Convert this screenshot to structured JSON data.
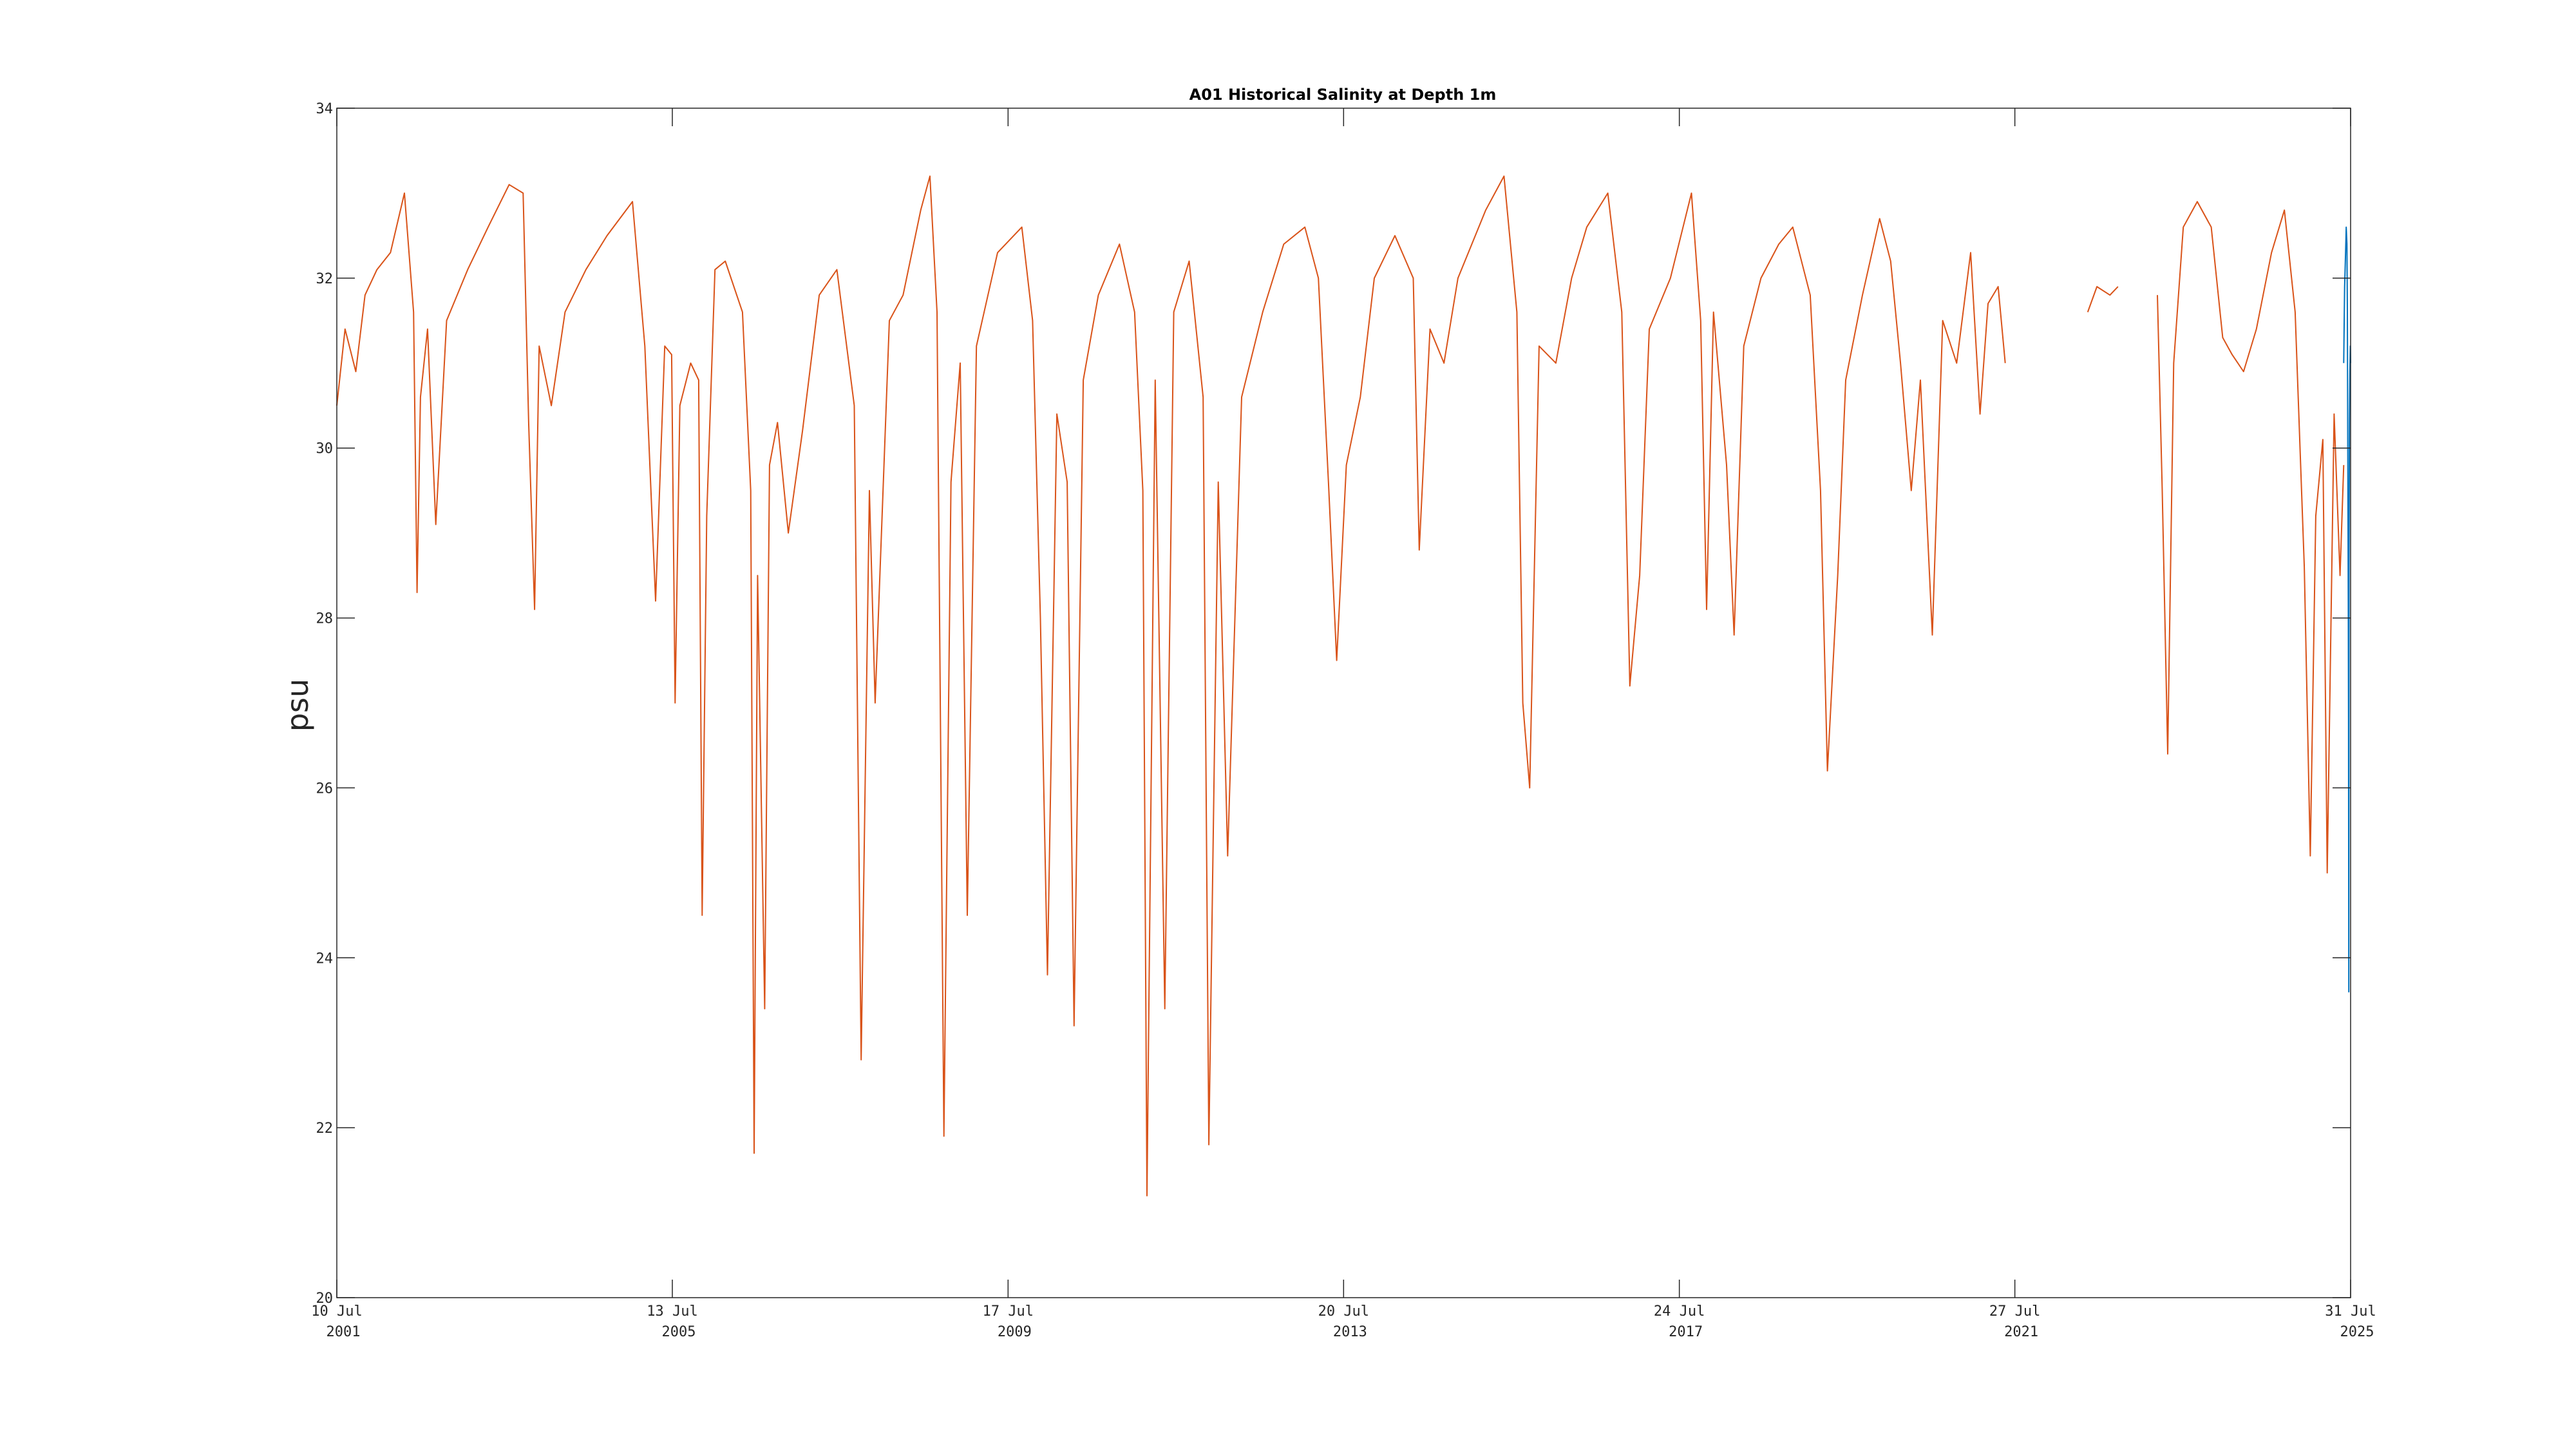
{
  "chart_data": {
    "type": "line",
    "title": "A01 Historical Salinity at Depth 1m",
    "xlabel": "",
    "ylabel": "psu",
    "xlim": [
      "2001-07-10",
      "2025-07-31"
    ],
    "ylim": [
      20,
      34
    ],
    "yticks": [
      20,
      22,
      24,
      26,
      28,
      30,
      32,
      34
    ],
    "xticks": [
      {
        "date": "2001-07-10",
        "line1": "10 Jul",
        "line2": "2001"
      },
      {
        "date": "2005-07-13",
        "line1": "13 Jul",
        "line2": "2005"
      },
      {
        "date": "2009-07-17",
        "line1": "17 Jul",
        "line2": "2009"
      },
      {
        "date": "2013-07-20",
        "line1": "20 Jul",
        "line2": "2013"
      },
      {
        "date": "2017-07-24",
        "line1": "24 Jul",
        "line2": "2017"
      },
      {
        "date": "2021-07-27",
        "line1": "27 Jul",
        "line2": "2021"
      },
      {
        "date": "2025-07-31",
        "line1": "31 Jul",
        "line2": "2025"
      }
    ],
    "grid": false,
    "series": [
      {
        "color": "#D95319",
        "points": [
          [
            "2001-07-10",
            30.5
          ],
          [
            "2001-08-15",
            31.4
          ],
          [
            "2001-10-01",
            30.9
          ],
          [
            "2001-11-10",
            31.8
          ],
          [
            "2002-01-01",
            32.1
          ],
          [
            "2002-03-01",
            32.3
          ],
          [
            "2002-05-01",
            33.0
          ],
          [
            "2002-06-10",
            31.6
          ],
          [
            "2002-06-25",
            28.3
          ],
          [
            "2002-07-10",
            30.6
          ],
          [
            "2002-08-10",
            31.4
          ],
          [
            "2002-09-15",
            29.1
          ],
          [
            "2002-11-01",
            31.5
          ],
          [
            "2003-02-01",
            32.1
          ],
          [
            "2003-05-01",
            32.6
          ],
          [
            "2003-08-01",
            33.1
          ],
          [
            "2003-10-01",
            33.0
          ],
          [
            "2003-10-25",
            30.3
          ],
          [
            "2003-11-20",
            28.1
          ],
          [
            "2003-12-10",
            31.2
          ],
          [
            "2004-02-01",
            30.5
          ],
          [
            "2004-04-01",
            31.6
          ],
          [
            "2004-07-01",
            32.1
          ],
          [
            "2004-10-01",
            32.5
          ],
          [
            "2005-01-20",
            32.9
          ],
          [
            "2005-03-15",
            31.2
          ],
          [
            "2005-05-01",
            28.2
          ],
          [
            "2005-06-10",
            31.2
          ],
          [
            "2005-07-10",
            31.1
          ],
          [
            "2005-07-25",
            27.0
          ],
          [
            "2005-08-15",
            30.5
          ],
          [
            "2005-10-01",
            31.0
          ],
          [
            "2005-11-05",
            30.8
          ],
          [
            "2005-11-20",
            24.5
          ],
          [
            "2005-12-10",
            29.2
          ],
          [
            "2006-01-15",
            32.1
          ],
          [
            "2006-03-01",
            32.2
          ],
          [
            "2006-05-15",
            31.6
          ],
          [
            "2006-06-20",
            29.5
          ],
          [
            "2006-07-05",
            21.7
          ],
          [
            "2006-07-20",
            28.5
          ],
          [
            "2006-08-20",
            23.4
          ],
          [
            "2006-09-10",
            29.8
          ],
          [
            "2006-10-15",
            30.3
          ],
          [
            "2006-12-01",
            29.0
          ],
          [
            "2007-02-01",
            30.2
          ],
          [
            "2007-04-15",
            31.8
          ],
          [
            "2007-07-01",
            32.1
          ],
          [
            "2007-09-15",
            30.5
          ],
          [
            "2007-10-15",
            22.8
          ],
          [
            "2007-11-20",
            29.5
          ],
          [
            "2007-12-15",
            27.0
          ],
          [
            "2008-02-15",
            31.5
          ],
          [
            "2008-04-15",
            31.8
          ],
          [
            "2008-07-01",
            32.8
          ],
          [
            "2008-08-10",
            33.2
          ],
          [
            "2008-09-10",
            31.6
          ],
          [
            "2008-10-10",
            21.9
          ],
          [
            "2008-11-10",
            29.6
          ],
          [
            "2008-12-20",
            31.0
          ],
          [
            "2009-01-20",
            24.5
          ],
          [
            "2009-03-01",
            31.2
          ],
          [
            "2009-06-01",
            32.3
          ],
          [
            "2009-09-15",
            32.6
          ],
          [
            "2009-11-01",
            31.5
          ],
          [
            "2009-12-05",
            28.0
          ],
          [
            "2010-01-05",
            23.8
          ],
          [
            "2010-02-15",
            30.4
          ],
          [
            "2010-04-01",
            29.6
          ],
          [
            "2010-05-01",
            23.2
          ],
          [
            "2010-06-10",
            30.8
          ],
          [
            "2010-08-15",
            31.8
          ],
          [
            "2010-11-15",
            32.4
          ],
          [
            "2011-01-20",
            31.6
          ],
          [
            "2011-02-25",
            29.5
          ],
          [
            "2011-03-15",
            21.2
          ],
          [
            "2011-04-20",
            30.8
          ],
          [
            "2011-06-01",
            23.4
          ],
          [
            "2011-07-10",
            31.6
          ],
          [
            "2011-09-15",
            32.2
          ],
          [
            "2011-11-15",
            30.6
          ],
          [
            "2011-12-10",
            21.8
          ],
          [
            "2012-01-20",
            29.6
          ],
          [
            "2012-03-01",
            25.2
          ],
          [
            "2012-05-01",
            30.6
          ],
          [
            "2012-08-01",
            31.6
          ],
          [
            "2012-11-01",
            32.4
          ],
          [
            "2013-02-01",
            32.6
          ],
          [
            "2013-04-01",
            32.0
          ],
          [
            "2013-05-15",
            29.6
          ],
          [
            "2013-06-20",
            27.5
          ],
          [
            "2013-08-01",
            29.8
          ],
          [
            "2013-10-01",
            30.6
          ],
          [
            "2013-12-01",
            32.0
          ],
          [
            "2014-03-01",
            32.5
          ],
          [
            "2014-05-20",
            32.0
          ],
          [
            "2014-06-15",
            28.8
          ],
          [
            "2014-08-01",
            31.4
          ],
          [
            "2014-10-01",
            31.0
          ],
          [
            "2014-12-01",
            32.0
          ],
          [
            "2015-04-01",
            32.8
          ],
          [
            "2015-06-20",
            33.2
          ],
          [
            "2015-08-15",
            31.6
          ],
          [
            "2015-09-10",
            27.0
          ],
          [
            "2015-10-10",
            26.0
          ],
          [
            "2015-11-20",
            31.2
          ],
          [
            "2016-02-01",
            31.0
          ],
          [
            "2016-04-10",
            32.0
          ],
          [
            "2016-06-15",
            32.6
          ],
          [
            "2016-09-15",
            33.0
          ],
          [
            "2016-11-15",
            31.6
          ],
          [
            "2016-12-20",
            27.2
          ],
          [
            "2017-02-01",
            28.5
          ],
          [
            "2017-03-15",
            31.4
          ],
          [
            "2017-06-15",
            32.0
          ],
          [
            "2017-09-15",
            33.0
          ],
          [
            "2017-10-25",
            31.5
          ],
          [
            "2017-11-20",
            28.1
          ],
          [
            "2017-12-20",
            31.6
          ],
          [
            "2018-02-15",
            29.8
          ],
          [
            "2018-03-20",
            27.8
          ],
          [
            "2018-05-01",
            31.2
          ],
          [
            "2018-07-15",
            32.0
          ],
          [
            "2018-10-01",
            32.4
          ],
          [
            "2018-12-01",
            32.6
          ],
          [
            "2019-02-15",
            31.8
          ],
          [
            "2019-04-01",
            29.5
          ],
          [
            "2019-05-01",
            26.2
          ],
          [
            "2019-06-15",
            28.5
          ],
          [
            "2019-07-20",
            30.8
          ],
          [
            "2019-10-01",
            31.8
          ],
          [
            "2019-12-15",
            32.7
          ],
          [
            "2020-02-01",
            32.2
          ],
          [
            "2020-03-15",
            31.0
          ],
          [
            "2020-05-01",
            29.5
          ],
          [
            "2020-06-10",
            30.8
          ],
          [
            "2020-08-01",
            27.8
          ],
          [
            "2020-09-15",
            31.5
          ],
          [
            "2020-11-15",
            31.0
          ],
          [
            "2021-01-15",
            32.3
          ],
          [
            "2021-02-25",
            30.4
          ],
          [
            "2021-04-01",
            31.7
          ],
          [
            "2021-05-15",
            31.9
          ],
          [
            "2021-06-15",
            31.0
          ]
        ]
      },
      {
        "color": "#D95319",
        "points": [
          [
            "2022-06-10",
            31.6
          ],
          [
            "2022-07-20",
            31.9
          ],
          [
            "2022-09-15",
            31.8
          ],
          [
            "2022-10-20",
            31.9
          ]
        ]
      },
      {
        "color": "#D95319",
        "points": [
          [
            "2023-04-10",
            31.8
          ],
          [
            "2023-05-01",
            29.5
          ],
          [
            "2023-05-25",
            26.4
          ],
          [
            "2023-06-20",
            31.0
          ],
          [
            "2023-08-01",
            32.6
          ],
          [
            "2023-10-01",
            32.9
          ],
          [
            "2023-12-01",
            32.6
          ],
          [
            "2024-01-20",
            31.3
          ],
          [
            "2024-03-01",
            31.1
          ],
          [
            "2024-04-20",
            30.9
          ],
          [
            "2024-06-15",
            31.4
          ],
          [
            "2024-08-20",
            32.3
          ],
          [
            "2024-10-15",
            32.8
          ],
          [
            "2024-12-01",
            31.6
          ],
          [
            "2025-01-10",
            28.6
          ],
          [
            "2025-02-05",
            25.2
          ],
          [
            "2025-03-01",
            29.2
          ],
          [
            "2025-04-01",
            30.1
          ],
          [
            "2025-04-20",
            25.0
          ],
          [
            "2025-05-20",
            30.4
          ],
          [
            "2025-06-15",
            28.5
          ],
          [
            "2025-07-01",
            29.8
          ]
        ]
      },
      {
        "color": "#0072BD",
        "points": [
          [
            "2025-07-01",
            31.0
          ],
          [
            "2025-07-05",
            31.9
          ],
          [
            "2025-07-09",
            32.3
          ],
          [
            "2025-07-12",
            32.6
          ],
          [
            "2025-07-15",
            32.4
          ],
          [
            "2025-07-17",
            31.6
          ],
          [
            "2025-07-19",
            29.8
          ],
          [
            "2025-07-21",
            28.2
          ],
          [
            "2025-07-22",
            26.8
          ],
          [
            "2025-07-23",
            23.6
          ],
          [
            "2025-07-24",
            28.6
          ],
          [
            "2025-07-26",
            30.3
          ],
          [
            "2025-07-28",
            30.9
          ],
          [
            "2025-07-30",
            31.2
          ],
          [
            "2025-07-31",
            31.0
          ]
        ]
      }
    ]
  }
}
